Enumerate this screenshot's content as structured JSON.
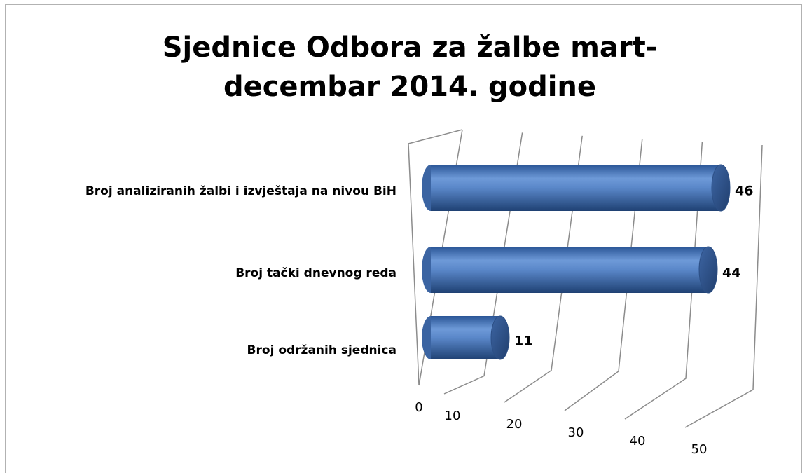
{
  "chart_data": {
    "type": "bar",
    "orientation": "horizontal",
    "title": "Sjednice Odbora za žalbe mart-decembar 2014. godine",
    "categories": [
      "Broj održanih sjednica",
      "Broj tački dnevnog reda",
      "Broj analiziranih žalbi i izvještaja na nivou BiH"
    ],
    "values": [
      11,
      44,
      46
    ],
    "color": "#4f81bd",
    "xlim": [
      0,
      50
    ],
    "xticks": [
      0,
      10,
      20,
      30,
      40,
      50
    ],
    "grid": true
  }
}
